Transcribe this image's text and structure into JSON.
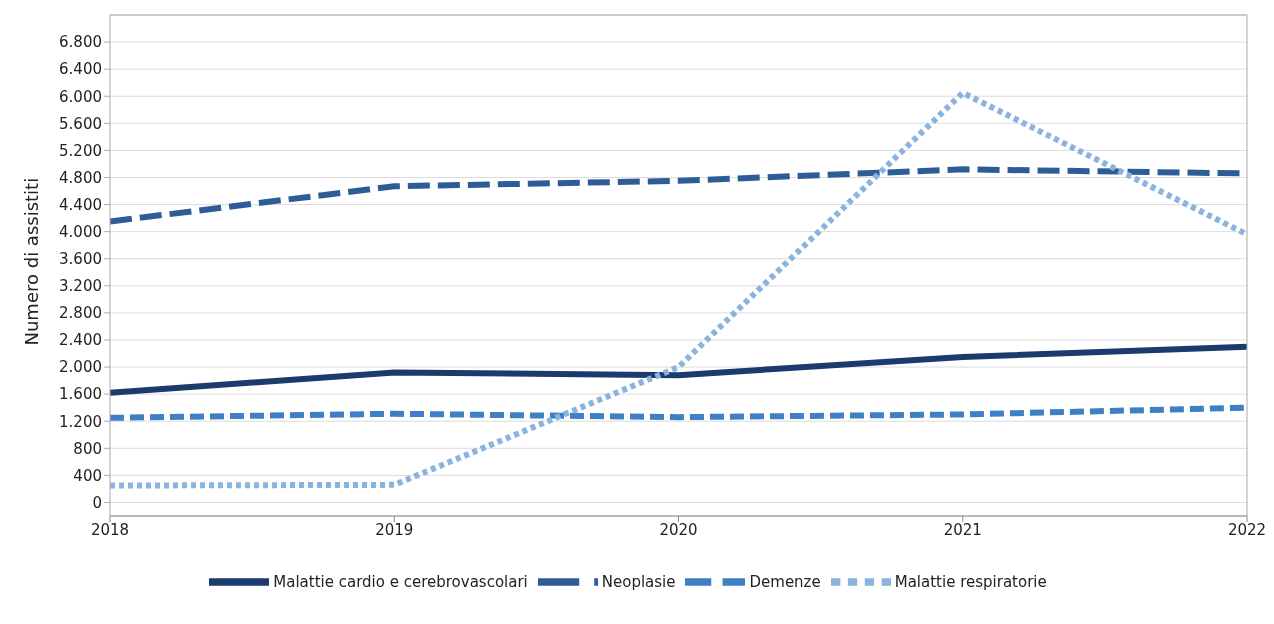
{
  "chart_data": {
    "type": "line",
    "ylabel": "Numero di assistiti",
    "x": [
      2018,
      2019,
      2020,
      2021,
      2022
    ],
    "series": [
      {
        "name": "Malattie cardio e cerebrovascolari",
        "color": "#1c3a6b",
        "line_style": "solid",
        "values": [
          1620,
          1920,
          1880,
          2150,
          2300
        ]
      },
      {
        "name": "Neoplasie",
        "color": "#2e5c96",
        "line_style": "dashed",
        "values": [
          4150,
          4670,
          4750,
          4920,
          4860
        ]
      },
      {
        "name": "Demenze",
        "color": "#3f7fc4",
        "line_style": "dashed",
        "values": [
          1250,
          1310,
          1260,
          1300,
          1400
        ]
      },
      {
        "name": "Malattie respiratorie",
        "color": "#8ab4e0",
        "line_style": "dotted",
        "values": [
          250,
          260,
          2000,
          6050,
          3960
        ]
      }
    ],
    "xlim": [
      2018,
      2022
    ],
    "xticks": [
      2018,
      2019,
      2020,
      2021,
      2022
    ],
    "ylim": [
      -200,
      7200
    ],
    "yticks": [
      0,
      {
        "value": 400,
        "label": "400"
      },
      {
        "value": 800,
        "label": "800"
      },
      {
        "value": 1200,
        "label": "1.200"
      },
      {
        "value": 1600,
        "label": "1.600"
      },
      {
        "value": 2000,
        "label": "2.000"
      },
      {
        "value": 2400,
        "label": "2.400"
      },
      {
        "value": 2800,
        "label": "2.800"
      },
      {
        "value": 3200,
        "label": "3.200"
      },
      {
        "value": 3600,
        "label": "3.600"
      },
      {
        "value": 4000,
        "label": "4.000"
      },
      {
        "value": 4400,
        "label": "4.400"
      },
      {
        "value": 4800,
        "label": "4.800"
      },
      {
        "value": 5200,
        "label": "5.200"
      },
      {
        "value": 5600,
        "label": "5.600"
      },
      {
        "value": 6000,
        "label": "6.000"
      },
      {
        "value": 6400,
        "label": "6.400"
      },
      {
        "value": 6800,
        "label": "6.800"
      }
    ],
    "grid": "y",
    "legend": "bottom",
    "marker": "none"
  }
}
